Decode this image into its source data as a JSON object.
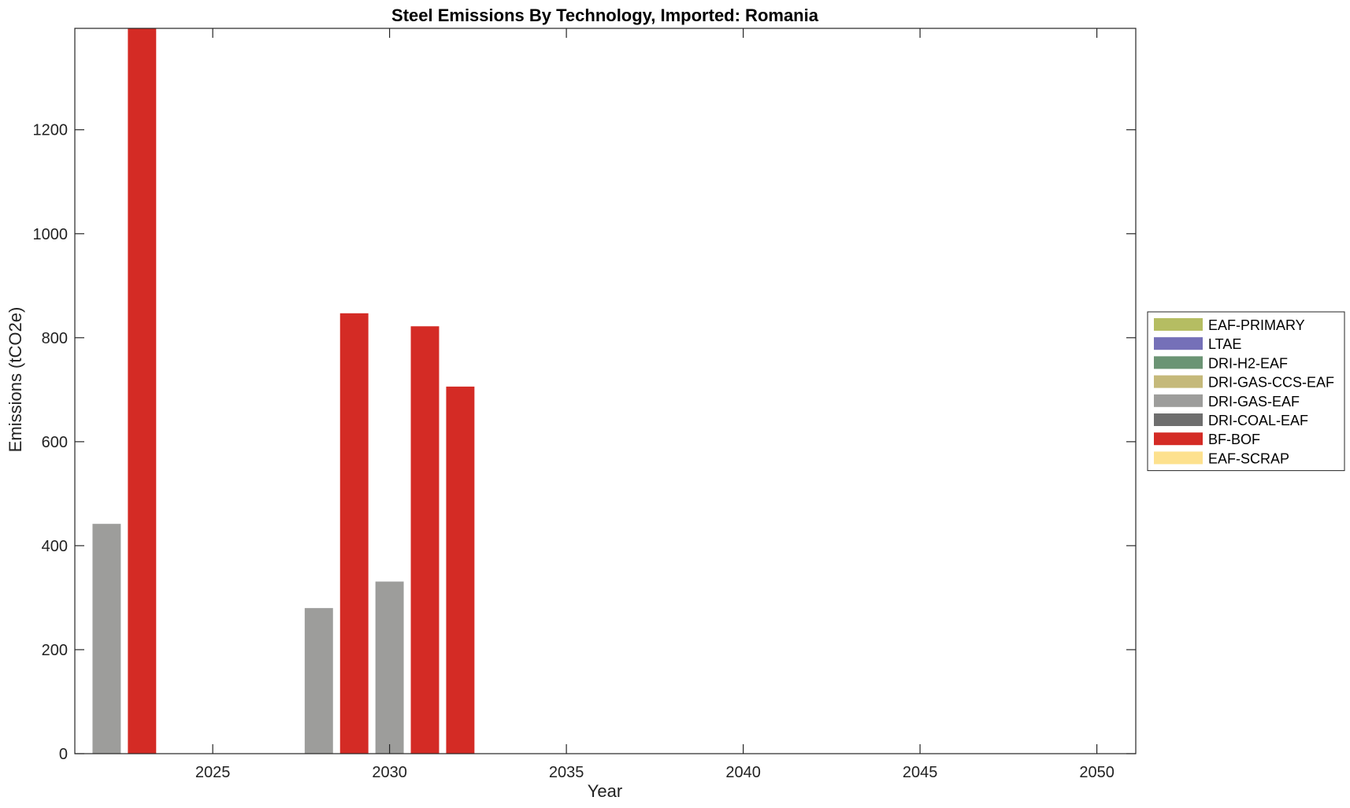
{
  "chart_data": {
    "type": "bar",
    "title": "Steel Emissions By Technology, Imported: Romania",
    "xlabel": "Year",
    "ylabel": "Emissions (tCO2e)",
    "xlim": [
      2021.1,
      2051.1
    ],
    "ylim": [
      0,
      1395
    ],
    "xticks": [
      2025,
      2030,
      2035,
      2040,
      2045,
      2050
    ],
    "yticks": [
      0,
      200,
      400,
      600,
      800,
      1000,
      1200
    ],
    "x": [
      2022,
      2023,
      2024,
      2025,
      2026,
      2027,
      2028,
      2029,
      2030,
      2031,
      2032,
      2033,
      2034,
      2035,
      2036,
      2037,
      2038,
      2039,
      2040,
      2041,
      2042,
      2043,
      2044,
      2045,
      2046,
      2047,
      2048,
      2049,
      2050
    ],
    "bar_position": "grouped",
    "grid": false,
    "legend_position": "right",
    "series": [
      {
        "name": "EAF-PRIMARY",
        "color": "#b5bd62",
        "values": [
          0,
          0,
          0,
          0,
          0,
          0,
          0,
          0,
          0,
          0,
          0,
          0,
          0,
          0,
          0,
          0,
          0,
          0,
          0,
          0,
          0,
          0,
          0,
          0,
          0,
          0,
          0,
          0,
          0
        ]
      },
      {
        "name": "LTAE",
        "color": "#7570b8",
        "values": [
          0,
          0,
          0,
          0,
          0,
          0,
          0,
          0,
          0,
          0,
          0,
          0,
          0,
          0,
          0,
          0,
          0,
          0,
          0,
          0,
          0,
          0,
          0,
          0,
          0,
          0,
          0,
          0,
          0
        ]
      },
      {
        "name": "DRI-H2-EAF",
        "color": "#6b9474",
        "values": [
          0,
          0,
          0,
          0,
          0,
          0,
          0,
          0,
          0,
          0,
          0,
          0,
          0,
          0,
          0,
          0,
          0,
          0,
          0,
          0,
          0,
          0,
          0,
          0,
          0,
          0,
          0,
          0,
          0
        ]
      },
      {
        "name": "DRI-GAS-CCS-EAF",
        "color": "#c5b97a",
        "values": [
          0,
          0,
          0,
          0,
          0,
          0,
          0,
          0,
          0,
          0,
          0,
          0,
          0,
          0,
          0,
          0,
          0,
          0,
          0,
          0,
          0,
          0,
          0,
          0,
          0,
          0,
          0,
          0,
          0
        ]
      },
      {
        "name": "DRI-GAS-EAF",
        "color": "#9d9d9b",
        "values": [
          442,
          0,
          0,
          0,
          0,
          0,
          280,
          0,
          331,
          0,
          0,
          0,
          0,
          0,
          0,
          0,
          0,
          0,
          0,
          0,
          0,
          0,
          0,
          0,
          0,
          0,
          0,
          0,
          0
        ]
      },
      {
        "name": "DRI-COAL-EAF",
        "color": "#6e6e6e",
        "values": [
          0,
          0,
          0,
          0,
          0,
          0,
          0,
          0,
          0,
          0,
          0,
          0,
          0,
          0,
          0,
          0,
          0,
          0,
          0,
          0,
          0,
          0,
          0,
          0,
          0,
          0,
          0,
          0,
          0
        ]
      },
      {
        "name": "BF-BOF",
        "color": "#d42b25",
        "values": [
          0,
          1400,
          0,
          0,
          0,
          0,
          0,
          847,
          0,
          822,
          706,
          0,
          0,
          0,
          0,
          0,
          0,
          0,
          0,
          0,
          0,
          0,
          0,
          0,
          0,
          0,
          0,
          0,
          0
        ]
      },
      {
        "name": "EAF-SCRAP",
        "color": "#fde18e",
        "values": [
          0,
          0,
          0,
          0,
          0,
          0,
          0,
          0,
          0,
          0,
          0,
          0,
          0,
          0,
          0,
          0,
          0,
          0,
          0,
          0,
          0,
          0,
          0,
          0,
          0,
          0,
          0,
          0,
          0
        ]
      }
    ]
  }
}
